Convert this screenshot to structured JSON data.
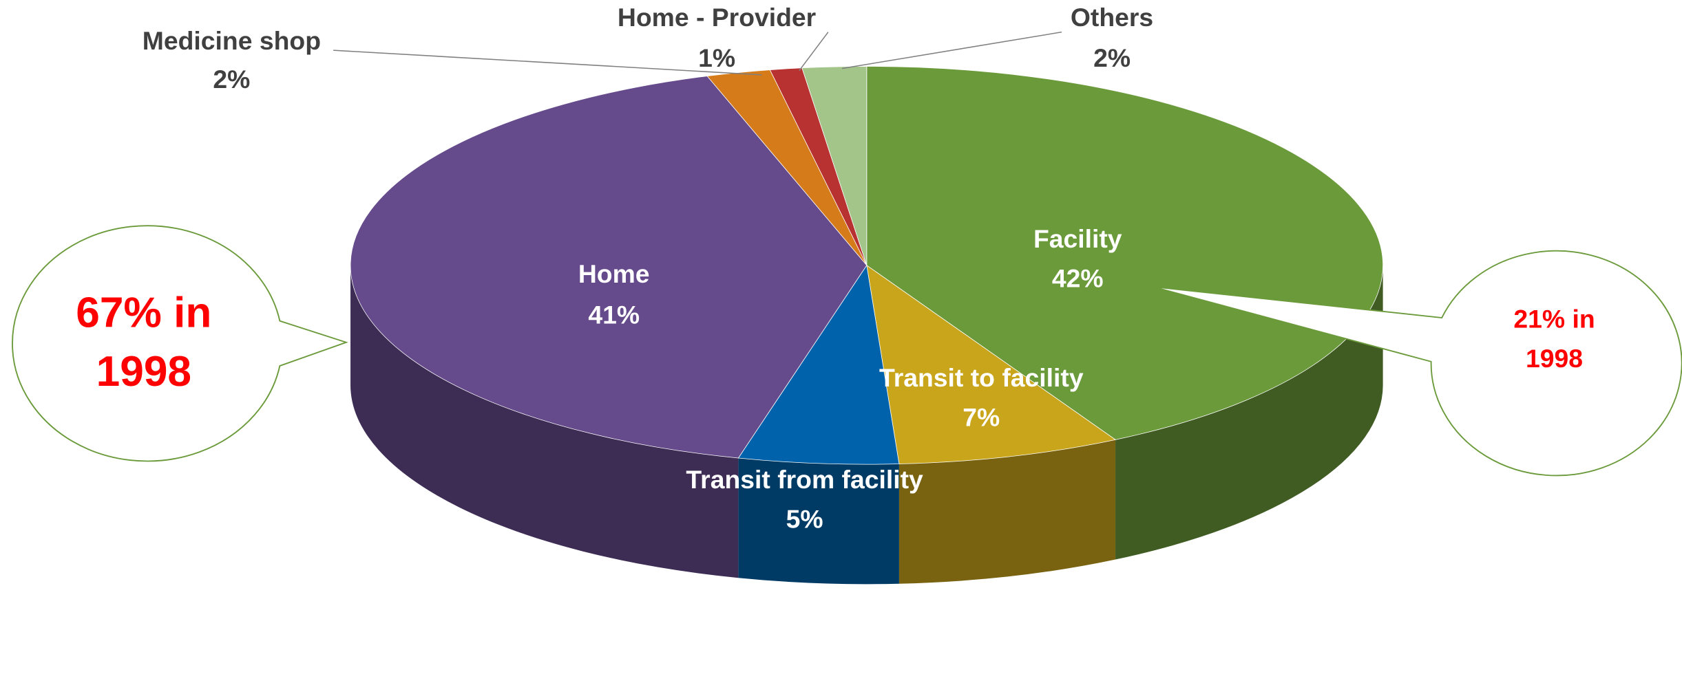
{
  "chart_data": {
    "type": "pie3d",
    "categories": [
      "Facility",
      "Transit to facility",
      "Transit from facility",
      "Home",
      "Medicine shop",
      "Home - Provider",
      "Others"
    ],
    "values": [
      42,
      7,
      5,
      41,
      2,
      1,
      2
    ],
    "value_labels": [
      "42%",
      "7%",
      "5%",
      "41%",
      "2%",
      "1%",
      "2%"
    ],
    "colors": [
      "#6a9a3a",
      "#c9a51b",
      "#0062aa",
      "#654a8c",
      "#d57b1a",
      "#b83232",
      "#a3c58a"
    ],
    "annotations": [
      {
        "lines": [
          "67% in",
          "1998"
        ]
      },
      {
        "lines": [
          "21% in",
          "1998"
        ]
      }
    ]
  }
}
